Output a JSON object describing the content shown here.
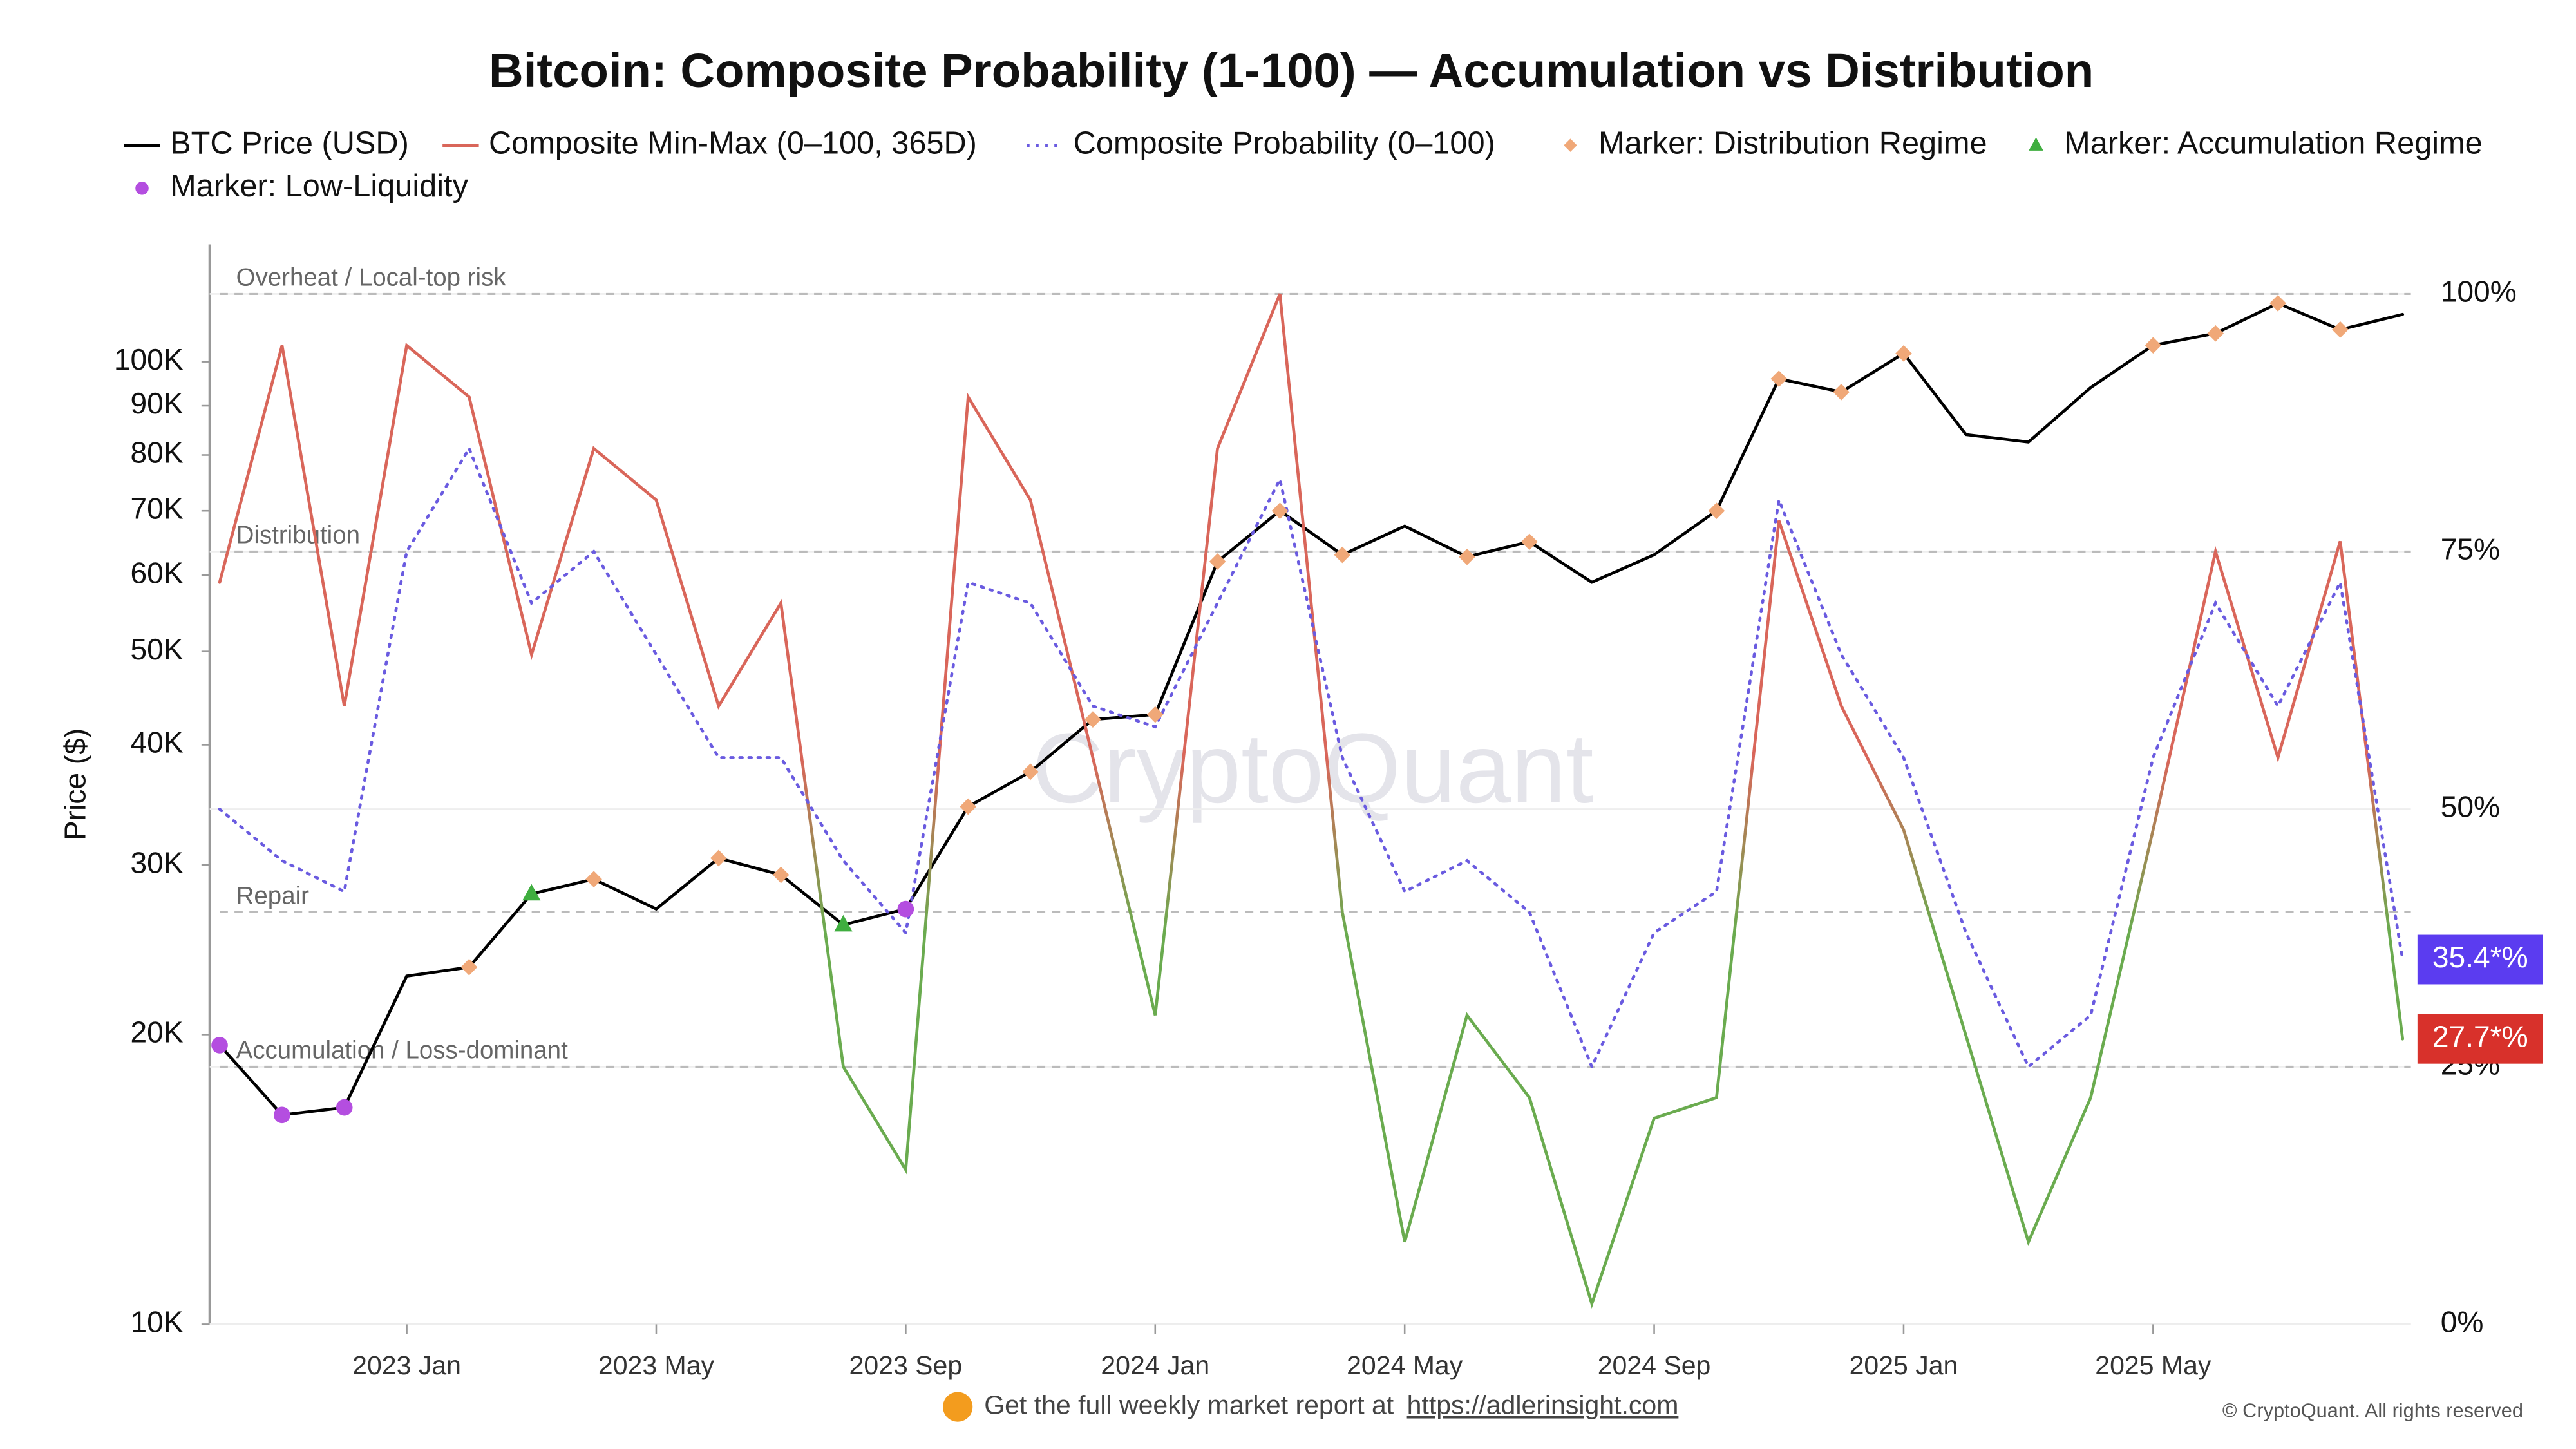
{
  "chart_data": {
    "type": "line",
    "title": "Bitcoin: Composite Probability (1-100) — Accumulation vs Distribution",
    "ylabel": "Price ($)",
    "watermark": "CryptoQuant",
    "footer": "Get the full weekly market report at",
    "footer_link": "https://adlerinsight.com",
    "copyright": "© CryptoQuant. All rights reserved",
    "x": [
      "2022-10",
      "2022-11",
      "2022-12",
      "2023-01",
      "2023-02",
      "2023-03",
      "2023-04",
      "2023-05",
      "2023-06",
      "2023-07",
      "2023-08",
      "2023-09",
      "2023-10",
      "2023-11",
      "2023-12",
      "2024-01",
      "2024-02",
      "2024-03",
      "2024-04",
      "2024-05",
      "2024-06",
      "2024-07",
      "2024-08",
      "2024-09",
      "2024-10",
      "2024-11",
      "2024-12",
      "2025-01",
      "2025-02",
      "2025-03",
      "2025-04",
      "2025-05",
      "2025-06",
      "2025-07",
      "2025-08",
      "2025-09"
    ],
    "xlim": [
      "2022-10",
      "2025-09"
    ],
    "xticks": [
      {
        "value": "2023-01",
        "label": "2023 Jan"
      },
      {
        "value": "2023-05",
        "label": "2023 May"
      },
      {
        "value": "2023-09",
        "label": "2023 Sep"
      },
      {
        "value": "2024-01",
        "label": "2024 Jan"
      },
      {
        "value": "2024-05",
        "label": "2024 May"
      },
      {
        "value": "2024-09",
        "label": "2024 Sep"
      },
      {
        "value": "2025-01",
        "label": "2025 Jan"
      },
      {
        "value": "2025-05",
        "label": "2025 May"
      }
    ],
    "ylog": true,
    "ylim": [
      10000,
      117600
    ],
    "yticks": [
      {
        "value": 10000,
        "label": "10K"
      },
      {
        "value": 20000,
        "label": "20K"
      },
      {
        "value": 30000,
        "label": "30K"
      },
      {
        "value": 40000,
        "label": "40K"
      },
      {
        "value": 50000,
        "label": "50K"
      },
      {
        "value": 60000,
        "label": "60K"
      },
      {
        "value": 70000,
        "label": "70K"
      },
      {
        "value": 80000,
        "label": "80K"
      },
      {
        "value": 90000,
        "label": "90K"
      },
      {
        "value": 100000,
        "label": "100K"
      }
    ],
    "y2lim": [
      0,
      100
    ],
    "y2ticks": [
      {
        "value": 0,
        "label": "0%"
      },
      {
        "value": 25,
        "label": "25%"
      },
      {
        "value": 50,
        "label": "50%"
      },
      {
        "value": 75,
        "label": "75%"
      },
      {
        "value": 100,
        "label": "100%"
      }
    ],
    "grid": true,
    "legend": "top",
    "annotations": [
      {
        "text": "Overheat / Local-top risk",
        "value": 100
      },
      {
        "text": "Distribution",
        "value": 75
      },
      {
        "text": "Repair",
        "value": 40
      },
      {
        "text": "Accumulation / Loss-dominant",
        "value": 25
      }
    ],
    "series": [
      {
        "name": "BTC Price (USD)",
        "style": "line",
        "color": "#000000",
        "values": [
          19500,
          16500,
          16800,
          23000,
          23500,
          28000,
          29000,
          27000,
          30500,
          29300,
          26000,
          27000,
          34500,
          37500,
          42500,
          43000,
          62000,
          70000,
          63000,
          67500,
          62700,
          65000,
          59000,
          63000,
          70000,
          96000,
          93000,
          102000,
          84000,
          82500,
          94000,
          104000,
          107000,
          115000,
          108000,
          112000
        ]
      },
      {
        "name": "Composite Min-Max (0–100, 365D)",
        "style": "line",
        "axis": "y2",
        "color": "#d9665a",
        "color_low": "#6aab4f",
        "label_color": "#d8312b",
        "values": [
          72,
          95,
          60,
          95,
          90,
          65,
          85,
          80,
          60,
          70,
          25,
          15,
          90,
          80,
          55,
          30,
          85,
          100,
          40,
          8,
          30,
          22,
          2,
          20,
          22,
          78,
          60,
          48,
          28,
          8,
          22,
          48,
          75,
          55,
          76,
          27.7
        ],
        "value_labels": [
          null,
          null,
          null,
          null,
          null,
          null,
          null,
          null,
          null,
          null,
          null,
          null,
          null,
          null,
          null,
          null,
          null,
          null,
          null,
          null,
          null,
          null,
          null,
          null,
          null,
          null,
          null,
          null,
          null,
          null,
          null,
          null,
          null,
          null,
          null,
          "27.7*%"
        ]
      },
      {
        "name": "Composite Probability (0–100)",
        "style": "dotted",
        "axis": "y2",
        "color": "#6a5be0",
        "label_color": "#5b3cf0",
        "values": [
          50,
          45,
          42,
          75,
          85,
          70,
          75,
          65,
          55,
          55,
          45,
          38,
          72,
          70,
          60,
          58,
          70,
          82,
          55,
          42,
          45,
          40,
          25,
          38,
          42,
          80,
          65,
          55,
          38,
          25,
          30,
          55,
          70,
          60,
          72,
          35.4
        ],
        "value_labels": [
          null,
          null,
          null,
          null,
          null,
          null,
          null,
          null,
          null,
          null,
          null,
          null,
          null,
          null,
          null,
          null,
          null,
          null,
          null,
          null,
          null,
          null,
          null,
          null,
          null,
          null,
          null,
          null,
          null,
          null,
          null,
          null,
          null,
          null,
          null,
          "35.4*%"
        ]
      },
      {
        "name": "Marker: Distribution Regime",
        "style": "marker",
        "shape": "diamond",
        "color": "#f0a878",
        "values": [
          null,
          null,
          null,
          null,
          23500,
          null,
          29000,
          null,
          30500,
          29300,
          null,
          null,
          34500,
          37500,
          42500,
          43000,
          62000,
          70000,
          63000,
          null,
          62700,
          65000,
          null,
          null,
          70000,
          96000,
          93000,
          102000,
          null,
          null,
          null,
          104000,
          107000,
          115000,
          108000,
          null
        ]
      },
      {
        "name": "Marker: Accumulation Regime",
        "style": "marker",
        "shape": "triangle",
        "color": "#3fae3f",
        "values": [
          null,
          null,
          null,
          null,
          null,
          28000,
          null,
          null,
          null,
          null,
          26000,
          null,
          null,
          null,
          null,
          null,
          null,
          null,
          null,
          null,
          null,
          null,
          null,
          null,
          null,
          null,
          null,
          null,
          null,
          null,
          null,
          null,
          null,
          null,
          null,
          null
        ]
      },
      {
        "name": "Marker: Low-Liquidity",
        "style": "marker",
        "shape": "circle",
        "color": "#b44ee0",
        "values": [
          19500,
          16500,
          16800,
          null,
          null,
          null,
          null,
          null,
          null,
          null,
          null,
          27000,
          null,
          null,
          null,
          null,
          null,
          null,
          null,
          null,
          null,
          null,
          null,
          null,
          null,
          null,
          null,
          null,
          null,
          null,
          null,
          null,
          null,
          null,
          null,
          null
        ]
      }
    ]
  }
}
